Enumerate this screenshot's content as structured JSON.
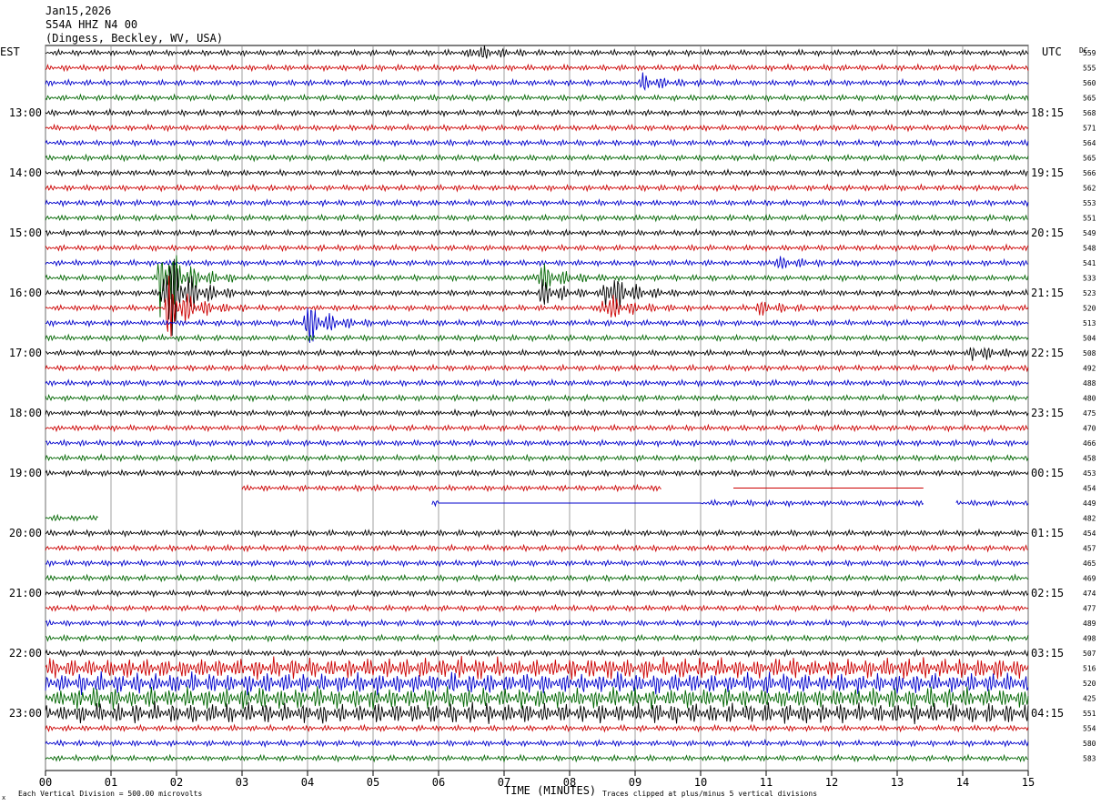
{
  "header": {
    "date": "Jan15,2026",
    "station": "S54A HHZ N4 00",
    "location": "(Dingess, Beckley, WV, USA)"
  },
  "left_axis_label": "EST",
  "right_axis_label": "UTC",
  "dc_label": "DC",
  "footer": {
    "vertical_division": "Each Vertical Division =  500.00 microvolts",
    "xlabel": "TIME (MINUTES)",
    "clip_note": "Traces clipped at plus/minus 5 vertical divisions",
    "corner_mark": "x"
  },
  "colors": {
    "trace": [
      "#000000",
      "#cc0000",
      "#0000cc",
      "#006600"
    ],
    "grid": "#888888"
  },
  "chart_data": {
    "type": "line",
    "x_range": [
      0,
      15
    ],
    "x_ticks": [
      "00",
      "01",
      "02",
      "03",
      "04",
      "05",
      "06",
      "07",
      "08",
      "09",
      "10",
      "11",
      "12",
      "13",
      "14",
      "15"
    ],
    "rows": 48,
    "rows_per_hour": 4,
    "est_labels": [
      "13:00",
      "14:00",
      "15:00",
      "16:00",
      "17:00",
      "18:00",
      "19:00",
      "20:00",
      "21:00",
      "22:00",
      "23:00"
    ],
    "utc_labels": [
      "18:15",
      "19:15",
      "20:15",
      "21:15",
      "22:15",
      "23:15",
      "00:15",
      "01:15",
      "02:15",
      "03:15",
      "04:15"
    ],
    "dc_values": [
      559,
      555,
      560,
      565,
      568,
      571,
      564,
      565,
      566,
      562,
      553,
      551,
      549,
      548,
      541,
      533,
      523,
      520,
      513,
      504,
      508,
      492,
      488,
      480,
      475,
      470,
      466,
      458,
      453,
      454,
      449,
      482,
      454,
      457,
      465,
      469,
      474,
      477,
      489,
      498,
      507,
      516,
      520,
      425,
      551,
      554,
      580,
      583
    ],
    "events": [
      {
        "row": 15,
        "minute": 1.75,
        "amp": 3.5
      },
      {
        "row": 16,
        "minute": 1.8,
        "amp": 4.5
      },
      {
        "row": 17,
        "minute": 1.85,
        "amp": 2.5
      },
      {
        "row": 18,
        "minute": 3.95,
        "amp": 1.8
      },
      {
        "row": 0,
        "minute": 6.5,
        "amp": 0.6
      },
      {
        "row": 2,
        "minute": 9.1,
        "amp": 0.6
      },
      {
        "row": 15,
        "minute": 7.5,
        "amp": 1.3
      },
      {
        "row": 16,
        "minute": 7.55,
        "amp": 1.0
      },
      {
        "row": 16,
        "minute": 8.55,
        "amp": 1.9
      },
      {
        "row": 17,
        "minute": 8.5,
        "amp": 1.2
      },
      {
        "row": 14,
        "minute": 11.1,
        "amp": 0.5
      },
      {
        "row": 17,
        "minute": 10.85,
        "amp": 0.5
      },
      {
        "row": 20,
        "minute": 14.15,
        "amp": 0.6
      }
    ],
    "gaps": [
      {
        "row": 29,
        "segments": [
          [
            3.0,
            9.4
          ]
        ],
        "flats": [
          [
            10.5,
            13.4
          ]
        ]
      },
      {
        "row": 30,
        "segments": [
          [
            5.9,
            13.4
          ],
          [
            13.9,
            15
          ]
        ],
        "flats": [
          [
            6.0,
            10.0
          ]
        ]
      },
      {
        "row": 31,
        "segments": [
          [
            0,
            0.8
          ]
        ],
        "flats": []
      }
    ],
    "noisy_rows": [
      41,
      42,
      43,
      44
    ]
  }
}
